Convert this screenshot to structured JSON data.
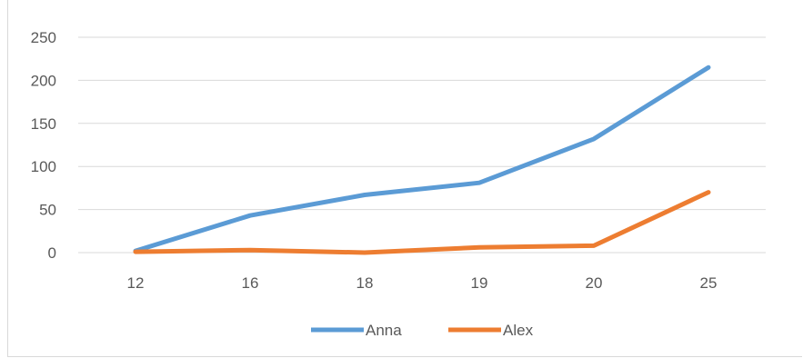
{
  "chart_data": {
    "type": "line",
    "categories": [
      "12",
      "16",
      "18",
      "19",
      "20",
      "25"
    ],
    "series": [
      {
        "name": "Anna",
        "values": [
          2,
          43,
          67,
          81,
          132,
          215
        ],
        "color": "#5b9bd5"
      },
      {
        "name": "Alex",
        "values": [
          1,
          3,
          0,
          6,
          8,
          70
        ],
        "color": "#ed7d31"
      }
    ],
    "ylim": [
      0,
      250
    ],
    "yticks": [
      0,
      50,
      100,
      150,
      200,
      250
    ],
    "grid": true,
    "legend": "bottom"
  }
}
